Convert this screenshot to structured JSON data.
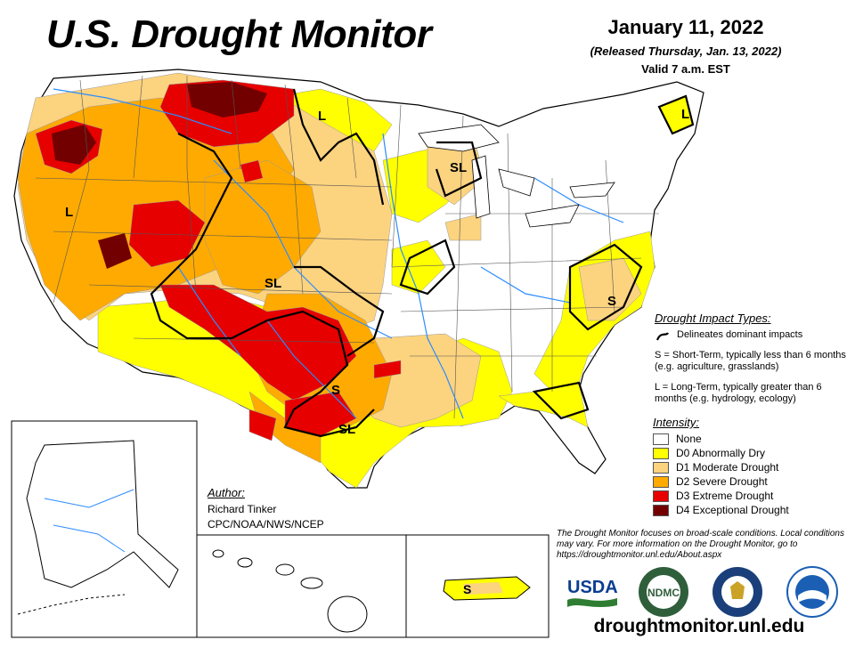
{
  "header": {
    "title": "U.S. Drought Monitor",
    "date": "January 11, 2022",
    "released": "(Released Thursday, Jan. 13, 2022)",
    "valid": "Valid 7 a.m. EST"
  },
  "impact_types": {
    "title": "Drought Impact Types:",
    "line_text": "Delineates dominant impacts",
    "short_term": "S = Short-Term, typically less than 6 months (e.g. agriculture, grasslands)",
    "long_term": "L = Long-Term, typically greater than 6 months (e.g. hydrology, ecology)"
  },
  "intensity": {
    "title": "Intensity:",
    "levels": [
      {
        "label": "None",
        "color": "#ffffff"
      },
      {
        "label": "D0 Abnormally Dry",
        "color": "#ffff00"
      },
      {
        "label": "D1 Moderate Drought",
        "color": "#fcd37f"
      },
      {
        "label": "D2 Severe Drought",
        "color": "#ffaa00"
      },
      {
        "label": "D3 Extreme Drought",
        "color": "#e60000"
      },
      {
        "label": "D4 Exceptional Drought",
        "color": "#730000"
      }
    ]
  },
  "author": {
    "title": "Author:",
    "name": "Richard Tinker",
    "org": "CPC/NOAA/NWS/NCEP"
  },
  "note": "The Drought Monitor focuses on broad-scale conditions. Local conditions may vary. For more information on the Drought Monitor, go to https://droughtmonitor.unl.edu/About.aspx",
  "url": "droughtmonitor.unl.edu",
  "map_labels": {
    "sl1": "SL",
    "sl2": "SL",
    "sl3": "SL",
    "s1": "S",
    "s2": "S",
    "s_pr": "S",
    "l1": "L",
    "l2": "L",
    "l3": "L"
  },
  "logos": {
    "usda": "USDA",
    "ndmc": "NDMC",
    "commerce": "DOC",
    "noaa": "NOAA"
  },
  "colors": {
    "water": "#2b8cff",
    "border": "#000000"
  }
}
